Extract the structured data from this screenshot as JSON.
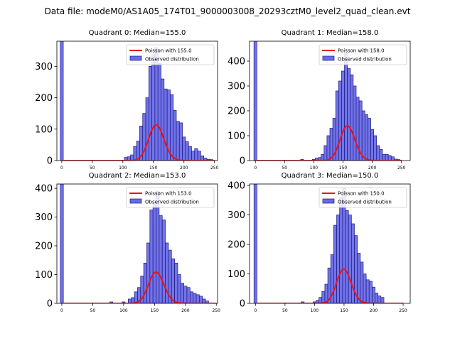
{
  "suptitle": "Data file: modeM0/AS1A05_174T01_9000003008_20293cztM0_level2_quad_clean.evt",
  "colors": {
    "bar_fill": "#6b6be8",
    "bar_edge": "#1a1a80",
    "poisson_line": "#e8131b",
    "axes": "#000000"
  },
  "chart_data": [
    {
      "type": "bar",
      "title": "Quadrant 0: Median=155.0",
      "median": 155.0,
      "legend": [
        "Poisson with 155.0",
        "Observed distribution"
      ],
      "legend_position": "top-right",
      "xlim": [
        -8,
        255
      ],
      "ylim": [
        0,
        380
      ],
      "xticks": [
        "0",
        "50",
        "100",
        "150",
        "200",
        "250"
      ],
      "yticks": [
        "0",
        "100",
        "200",
        "300"
      ],
      "bin_width": 5,
      "bins": [
        {
          "x": 0,
          "y": 380
        },
        {
          "x": 105,
          "y": 10
        },
        {
          "x": 110,
          "y": 12
        },
        {
          "x": 115,
          "y": 18
        },
        {
          "x": 120,
          "y": 45
        },
        {
          "x": 125,
          "y": 62
        },
        {
          "x": 130,
          "y": 110
        },
        {
          "x": 135,
          "y": 150
        },
        {
          "x": 140,
          "y": 200
        },
        {
          "x": 145,
          "y": 300
        },
        {
          "x": 150,
          "y": 335
        },
        {
          "x": 155,
          "y": 360
        },
        {
          "x": 160,
          "y": 310
        },
        {
          "x": 165,
          "y": 260
        },
        {
          "x": 170,
          "y": 228
        },
        {
          "x": 175,
          "y": 225
        },
        {
          "x": 180,
          "y": 210
        },
        {
          "x": 185,
          "y": 160
        },
        {
          "x": 190,
          "y": 125
        },
        {
          "x": 195,
          "y": 120
        },
        {
          "x": 200,
          "y": 75
        },
        {
          "x": 205,
          "y": 60
        },
        {
          "x": 210,
          "y": 45
        },
        {
          "x": 215,
          "y": 30
        },
        {
          "x": 220,
          "y": 38
        },
        {
          "x": 225,
          "y": 30
        },
        {
          "x": 230,
          "y": 15
        },
        {
          "x": 235,
          "y": 8
        },
        {
          "x": 240,
          "y": 4
        },
        {
          "x": 245,
          "y": 3
        }
      ]
    },
    {
      "type": "bar",
      "title": "Quadrant 1: Median=158.0",
      "median": 158.0,
      "legend": [
        "Poisson with 158.0",
        "Observed distribution"
      ],
      "legend_position": "top-right",
      "xlim": [
        -10,
        265
      ],
      "ylim": [
        0,
        480
      ],
      "xticks": [
        "0",
        "50",
        "100",
        "150",
        "200",
        "250"
      ],
      "yticks": [
        "0",
        "100",
        "200",
        "300",
        "400"
      ],
      "bin_width": 5,
      "bins": [
        {
          "x": 0,
          "y": 480
        },
        {
          "x": 80,
          "y": 5
        },
        {
          "x": 100,
          "y": 5
        },
        {
          "x": 105,
          "y": 10
        },
        {
          "x": 110,
          "y": 12
        },
        {
          "x": 115,
          "y": 25
        },
        {
          "x": 120,
          "y": 60
        },
        {
          "x": 125,
          "y": 100
        },
        {
          "x": 130,
          "y": 130
        },
        {
          "x": 135,
          "y": 170
        },
        {
          "x": 140,
          "y": 280
        },
        {
          "x": 145,
          "y": 320
        },
        {
          "x": 150,
          "y": 360
        },
        {
          "x": 155,
          "y": 430
        },
        {
          "x": 160,
          "y": 370
        },
        {
          "x": 165,
          "y": 345
        },
        {
          "x": 170,
          "y": 300
        },
        {
          "x": 175,
          "y": 255
        },
        {
          "x": 180,
          "y": 240
        },
        {
          "x": 185,
          "y": 200
        },
        {
          "x": 190,
          "y": 185
        },
        {
          "x": 195,
          "y": 170
        },
        {
          "x": 200,
          "y": 125
        },
        {
          "x": 205,
          "y": 100
        },
        {
          "x": 210,
          "y": 60
        },
        {
          "x": 215,
          "y": 45
        },
        {
          "x": 220,
          "y": 25
        },
        {
          "x": 225,
          "y": 25
        },
        {
          "x": 230,
          "y": 20
        },
        {
          "x": 235,
          "y": 15
        },
        {
          "x": 240,
          "y": 6
        },
        {
          "x": 245,
          "y": 4
        }
      ]
    },
    {
      "type": "bar",
      "title": "Quadrant 2: Median=153.0",
      "median": 153.0,
      "legend": [
        "Poisson with 153.0",
        "Observed distribution"
      ],
      "legend_position": "top-right",
      "xlim": [
        -8,
        252
      ],
      "ylim": [
        0,
        415
      ],
      "xticks": [
        "0",
        "50",
        "100",
        "150",
        "200",
        "250"
      ],
      "yticks": [
        "0",
        "100",
        "200",
        "300",
        "400"
      ],
      "bin_width": 5,
      "bins": [
        {
          "x": 0,
          "y": 415
        },
        {
          "x": 80,
          "y": 5
        },
        {
          "x": 100,
          "y": 5
        },
        {
          "x": 110,
          "y": 15
        },
        {
          "x": 115,
          "y": 20
        },
        {
          "x": 120,
          "y": 40
        },
        {
          "x": 125,
          "y": 55
        },
        {
          "x": 130,
          "y": 95
        },
        {
          "x": 135,
          "y": 140
        },
        {
          "x": 140,
          "y": 210
        },
        {
          "x": 145,
          "y": 325
        },
        {
          "x": 150,
          "y": 345
        },
        {
          "x": 155,
          "y": 390
        },
        {
          "x": 160,
          "y": 305
        },
        {
          "x": 165,
          "y": 290
        },
        {
          "x": 170,
          "y": 210
        },
        {
          "x": 175,
          "y": 185
        },
        {
          "x": 180,
          "y": 155
        },
        {
          "x": 185,
          "y": 140
        },
        {
          "x": 190,
          "y": 100
        },
        {
          "x": 195,
          "y": 70
        },
        {
          "x": 200,
          "y": 60
        },
        {
          "x": 205,
          "y": 55
        },
        {
          "x": 210,
          "y": 40
        },
        {
          "x": 215,
          "y": 35
        },
        {
          "x": 220,
          "y": 30
        },
        {
          "x": 225,
          "y": 25
        },
        {
          "x": 230,
          "y": 15
        },
        {
          "x": 235,
          "y": 8
        }
      ]
    },
    {
      "type": "bar",
      "title": "Quadrant 3: Median=150.0",
      "median": 150.0,
      "legend": [
        "Poisson with 150.0",
        "Observed distribution"
      ],
      "legend_position": "top-right",
      "xlim": [
        -10,
        262
      ],
      "ylim": [
        0,
        405
      ],
      "xticks": [
        "0",
        "50",
        "100",
        "150",
        "200",
        "250"
      ],
      "yticks": [
        "0",
        "100",
        "200",
        "300",
        "400"
      ],
      "bin_width": 5,
      "bins": [
        {
          "x": 0,
          "y": 405
        },
        {
          "x": 80,
          "y": 5
        },
        {
          "x": 100,
          "y": 5
        },
        {
          "x": 105,
          "y": 10
        },
        {
          "x": 110,
          "y": 20
        },
        {
          "x": 115,
          "y": 40
        },
        {
          "x": 120,
          "y": 65
        },
        {
          "x": 125,
          "y": 120
        },
        {
          "x": 130,
          "y": 165
        },
        {
          "x": 135,
          "y": 265
        },
        {
          "x": 140,
          "y": 300
        },
        {
          "x": 145,
          "y": 360
        },
        {
          "x": 150,
          "y": 390
        },
        {
          "x": 155,
          "y": 315
        },
        {
          "x": 160,
          "y": 300
        },
        {
          "x": 165,
          "y": 270
        },
        {
          "x": 170,
          "y": 230
        },
        {
          "x": 175,
          "y": 170
        },
        {
          "x": 180,
          "y": 140
        },
        {
          "x": 185,
          "y": 100
        },
        {
          "x": 190,
          "y": 80
        },
        {
          "x": 195,
          "y": 75
        },
        {
          "x": 200,
          "y": 55
        },
        {
          "x": 205,
          "y": 35
        },
        {
          "x": 210,
          "y": 25
        },
        {
          "x": 215,
          "y": 20
        }
      ]
    }
  ]
}
